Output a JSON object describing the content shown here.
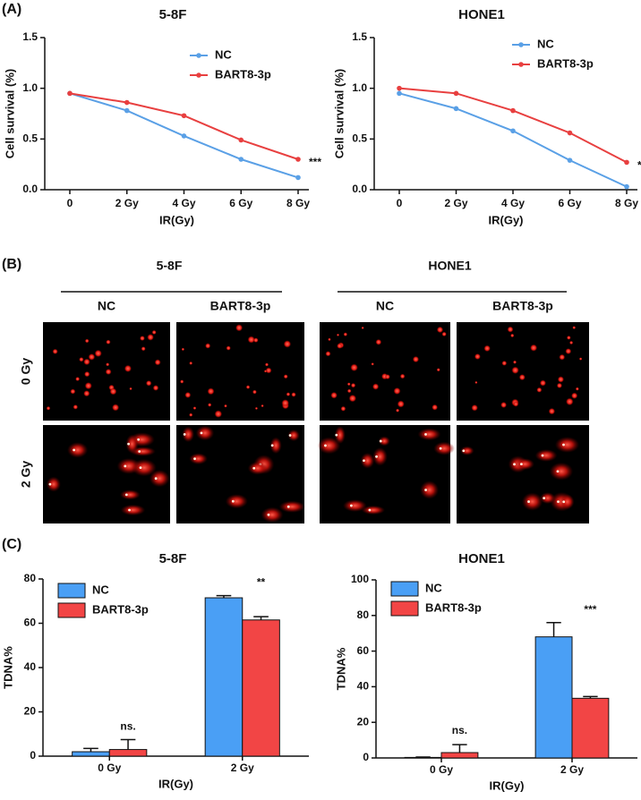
{
  "panel_labels": [
    "(A)",
    "(B)",
    "(C)"
  ],
  "chart_data": [
    {
      "type": "line",
      "title": "5-8F",
      "x_label": "IR(Gy)",
      "y_label": "Cell survival (%)",
      "categories": [
        "0",
        "2 Gy",
        "4 Gy",
        "6 Gy",
        "8 Gy"
      ],
      "series": [
        {
          "name": "NC",
          "color": "#5aa0e6",
          "values": [
            0.95,
            0.78,
            0.53,
            0.3,
            0.12
          ]
        },
        {
          "name": "BART8-3p",
          "color": "#e84040",
          "values": [
            0.95,
            0.86,
            0.73,
            0.49,
            0.3
          ]
        }
      ],
      "ylim": [
        0,
        1.5
      ],
      "yticks": [
        {
          "value": 0,
          "label": "0.0"
        },
        0.5,
        {
          "value": 1,
          "label": "1.0"
        },
        1.5
      ],
      "annotation": "***"
    },
    {
      "type": "line",
      "title": "HONE1",
      "x_label": "IR(Gy)",
      "y_label": "Cell survival (%)",
      "categories": [
        "0",
        "2 Gy",
        "4 Gy",
        "6 Gy",
        "8 Gy"
      ],
      "series": [
        {
          "name": "NC",
          "color": "#5aa0e6",
          "values": [
            0.95,
            0.8,
            0.58,
            0.29,
            0.03
          ]
        },
        {
          "name": "BART8-3p",
          "color": "#e84040",
          "values": [
            1.0,
            0.95,
            0.78,
            0.56,
            0.27
          ]
        }
      ],
      "ylim": [
        0,
        1.5
      ],
      "yticks": [
        {
          "value": 0,
          "label": "0.0"
        },
        0.5,
        {
          "value": 1,
          "label": "1.0"
        },
        1.5
      ],
      "annotation": "***"
    },
    {
      "type": "bar",
      "title": "5-8F",
      "x_label": "IR(Gy)",
      "y_label": "TDNA%",
      "categories": [
        "0 Gy",
        "2 Gy"
      ],
      "series": [
        {
          "name": "NC",
          "color": "#4a9ff5",
          "values": [
            2,
            71.5
          ],
          "errors": [
            1.5,
            1
          ]
        },
        {
          "name": "BART8-3p",
          "color": "#f24545",
          "values": [
            3,
            61.5
          ],
          "errors": [
            4.5,
            1.5
          ]
        }
      ],
      "ylim": [
        0,
        80
      ],
      "yticks": [
        0,
        20,
        40,
        60,
        80
      ],
      "annotations": [
        "ns.",
        "**"
      ]
    },
    {
      "type": "bar",
      "title": "HONE1",
      "x_label": "IR(Gy)",
      "y_label": "TDNA%",
      "categories": [
        "0 Gy",
        "2 Gy"
      ],
      "series": [
        {
          "name": "NC",
          "color": "#4a9ff5",
          "values": [
            0.3,
            68
          ],
          "errors": [
            0.2,
            8
          ]
        },
        {
          "name": "BART8-3p",
          "color": "#f24545",
          "values": [
            3,
            33.5
          ],
          "errors": [
            4.5,
            1
          ]
        }
      ],
      "ylim": [
        0,
        100
      ],
      "yticks": [
        0,
        20,
        40,
        60,
        80,
        100
      ],
      "annotations": [
        "ns.",
        "***"
      ]
    }
  ],
  "comet_assay": {
    "groups": [
      {
        "title": "5-8F",
        "columns": [
          "NC",
          "BART8-3p"
        ]
      },
      {
        "title": "HONE1",
        "columns": [
          "NC",
          "BART8-3p"
        ]
      }
    ],
    "rows": [
      "0 Gy",
      "2 Gy"
    ]
  }
}
